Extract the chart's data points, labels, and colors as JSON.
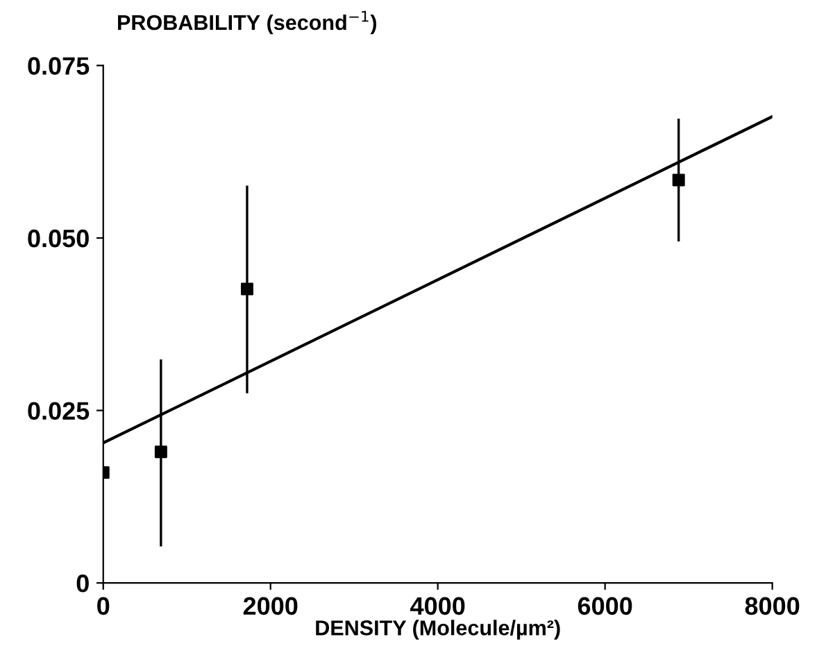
{
  "chart_data": {
    "type": "scatter",
    "ylabel": "PROBABILITY (second$^{−1}$)",
    "xlabel": "DENSITY (Molecule/µm²)",
    "xlim": [
      0,
      8000
    ],
    "xticks": [
      0,
      2000,
      4000,
      6000,
      8000
    ],
    "ylim": [
      0,
      0.075
    ],
    "yticks": [
      0,
      {
        "value": 0.025,
        "label": "0.025"
      },
      {
        "value": 0.05,
        "label": "0.050"
      },
      {
        "value": 0.075,
        "label": "0.075"
      }
    ],
    "grid": false,
    "legend": false,
    "series": [
      {
        "color": "#000000",
        "marker": "square",
        "x": [
          0,
          690,
          1720,
          6880
        ],
        "values": [
          0.016,
          0.019,
          0.0426,
          0.0584
        ],
        "errors": [
          null,
          [
            0.0053,
            0.0324
          ],
          [
            0.0275,
            0.0576
          ],
          [
            0.0495,
            0.0673
          ]
        ]
      },
      {
        "type": "line",
        "color": "#000000",
        "marker": "none",
        "line_style": "solid",
        "x": [
          0,
          8000
        ],
        "values": [
          0.0203,
          0.0676
        ]
      }
    ]
  }
}
